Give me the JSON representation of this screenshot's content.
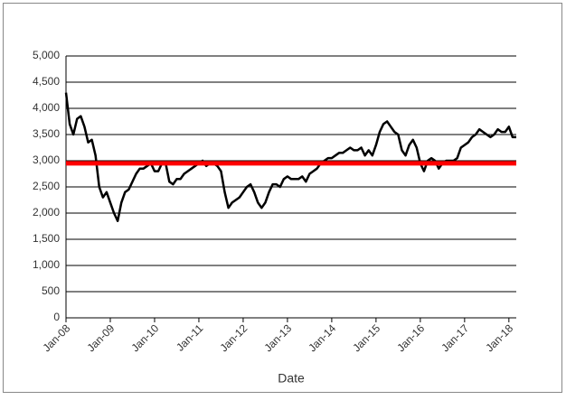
{
  "chart_data": {
    "type": "line",
    "x_label": "Date",
    "x": [
      "2008-01",
      "2008-02",
      "2008-03",
      "2008-04",
      "2008-05",
      "2008-06",
      "2008-07",
      "2008-08",
      "2008-09",
      "2008-10",
      "2008-11",
      "2008-12",
      "2009-01",
      "2009-02",
      "2009-03",
      "2009-04",
      "2009-05",
      "2009-06",
      "2009-07",
      "2009-08",
      "2009-09",
      "2009-10",
      "2009-11",
      "2009-12",
      "2010-01",
      "2010-02",
      "2010-03",
      "2010-04",
      "2010-05",
      "2010-06",
      "2010-07",
      "2010-08",
      "2010-09",
      "2010-10",
      "2010-11",
      "2010-12",
      "2011-01",
      "2011-02",
      "2011-03",
      "2011-04",
      "2011-05",
      "2011-06",
      "2011-07",
      "2011-08",
      "2011-09",
      "2011-10",
      "2011-11",
      "2011-12",
      "2012-01",
      "2012-02",
      "2012-03",
      "2012-04",
      "2012-05",
      "2012-06",
      "2012-07",
      "2012-08",
      "2012-09",
      "2012-10",
      "2012-11",
      "2012-12",
      "2013-01",
      "2013-02",
      "2013-03",
      "2013-04",
      "2013-05",
      "2013-06",
      "2013-07",
      "2013-08",
      "2013-09",
      "2013-10",
      "2013-11",
      "2013-12",
      "2014-01",
      "2014-02",
      "2014-03",
      "2014-04",
      "2014-05",
      "2014-06",
      "2014-07",
      "2014-08",
      "2014-09",
      "2014-10",
      "2014-11",
      "2014-12",
      "2015-01",
      "2015-02",
      "2015-03",
      "2015-04",
      "2015-05",
      "2015-06",
      "2015-07",
      "2015-08",
      "2015-09",
      "2015-10",
      "2015-11",
      "2015-12",
      "2016-01",
      "2016-02",
      "2016-03",
      "2016-04",
      "2016-05",
      "2016-06",
      "2016-07",
      "2016-08",
      "2016-09",
      "2016-10",
      "2016-11",
      "2016-12",
      "2017-01",
      "2017-02",
      "2017-03",
      "2017-04",
      "2017-05",
      "2017-06",
      "2017-07",
      "2017-08",
      "2017-09",
      "2017-10",
      "2017-11",
      "2017-12",
      "2018-01",
      "2018-02",
      "2018-03"
    ],
    "series": [
      {
        "color": "#000000",
        "values": [
          4300,
          3700,
          3500,
          3800,
          3850,
          3650,
          3350,
          3400,
          3100,
          2500,
          2300,
          2400,
          2200,
          2000,
          1850,
          2200,
          2400,
          2450,
          2600,
          2750,
          2850,
          2850,
          2900,
          2950,
          2800,
          2800,
          2950,
          2950,
          2600,
          2550,
          2650,
          2650,
          2750,
          2800,
          2850,
          2900,
          2950,
          3000,
          2900,
          2950,
          2950,
          2900,
          2800,
          2400,
          2100,
          2200,
          2250,
          2300,
          2400,
          2500,
          2550,
          2400,
          2200,
          2100,
          2200,
          2400,
          2550,
          2550,
          2500,
          2650,
          2700,
          2650,
          2650,
          2650,
          2700,
          2600,
          2750,
          2800,
          2850,
          2950,
          3000,
          3050,
          3050,
          3100,
          3150,
          3150,
          3200,
          3250,
          3200,
          3200,
          3250,
          3100,
          3200,
          3100,
          3300,
          3550,
          3700,
          3750,
          3650,
          3550,
          3500,
          3200,
          3100,
          3300,
          3400,
          3250,
          2950,
          2800,
          3000,
          3050,
          3000,
          2850,
          2950,
          3000,
          3000,
          3000,
          3050,
          3250,
          3300,
          3350,
          3450,
          3500,
          3600,
          3550,
          3500,
          3450,
          3500,
          3600,
          3550,
          3550,
          3650,
          3450,
          3450
        ]
      }
    ],
    "hline": {
      "value": 2950,
      "color": "#ff0000"
    },
    "xlim": [
      "2008-01",
      "2018-03"
    ],
    "xticks": [
      {
        "value": "2008-01",
        "label": "Jan-08"
      },
      {
        "value": "2009-01",
        "label": "Jan-09"
      },
      {
        "value": "2010-01",
        "label": "Jan-10"
      },
      {
        "value": "2011-01",
        "label": "Jan-11"
      },
      {
        "value": "2012-01",
        "label": "Jan-12"
      },
      {
        "value": "2013-01",
        "label": "Jan-13"
      },
      {
        "value": "2014-01",
        "label": "Jan-14"
      },
      {
        "value": "2015-01",
        "label": "Jan-15"
      },
      {
        "value": "2016-01",
        "label": "Jan-16"
      },
      {
        "value": "2017-01",
        "label": "Jan-17"
      },
      {
        "value": "2018-01",
        "label": "Jan-18"
      }
    ],
    "ylim": [
      0,
      5000
    ],
    "yticks": [
      0,
      500,
      {
        "value": 1000,
        "label": "1,000"
      },
      {
        "value": 1500,
        "label": "1,500"
      },
      {
        "value": 2000,
        "label": "2,000"
      },
      {
        "value": 2500,
        "label": "2,500"
      },
      {
        "value": 3000,
        "label": "3,000"
      },
      {
        "value": 3500,
        "label": "3,500"
      },
      {
        "value": 4000,
        "label": "4,000"
      },
      {
        "value": 4500,
        "label": "4,500"
      },
      {
        "value": 5000,
        "label": "5,000"
      }
    ],
    "grid": true
  }
}
